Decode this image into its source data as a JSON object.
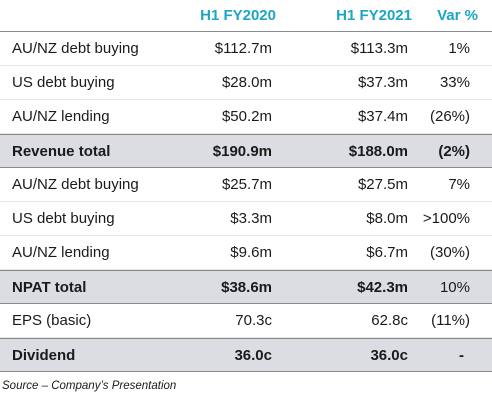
{
  "table": {
    "headers": [
      "",
      "H1 FY2020",
      "H1 FY2021",
      "Var %"
    ],
    "rows": [
      {
        "label": "AU/NZ debt buying",
        "fy2020": "$112.7m",
        "fy2021": "$113.3m",
        "var": "1%"
      },
      {
        "label": "US debt buying",
        "fy2020": "$28.0m",
        "fy2021": "$37.3m",
        "var": "33%"
      },
      {
        "label": "AU/NZ lending",
        "fy2020": "$50.2m",
        "fy2021": "$37.4m",
        "var": "(26%)"
      },
      {
        "label": "Revenue total",
        "fy2020": "$190.9m",
        "fy2021": "$188.0m",
        "var": "(2%)"
      },
      {
        "label": "AU/NZ debt buying",
        "fy2020": "$25.7m",
        "fy2021": "$27.5m",
        "var": "7%"
      },
      {
        "label": "US debt buying",
        "fy2020": "$3.3m",
        "fy2021": "$8.0m",
        "var": ">100%"
      },
      {
        "label": "AU/NZ lending",
        "fy2020": "$9.6m",
        "fy2021": "$6.7m",
        "var": "(30%)"
      },
      {
        "label": "NPAT total",
        "fy2020": "$38.6m",
        "fy2021": "$42.3m",
        "var": "10%"
      },
      {
        "label": "EPS (basic)",
        "fy2020": "70.3c",
        "fy2021": "62.8c",
        "var": "(11%)"
      },
      {
        "label": "Dividend",
        "fy2020": "36.0c",
        "fy2021": "36.0c",
        "var": "-"
      }
    ]
  },
  "source_note": "Source – Company’s Presentation"
}
